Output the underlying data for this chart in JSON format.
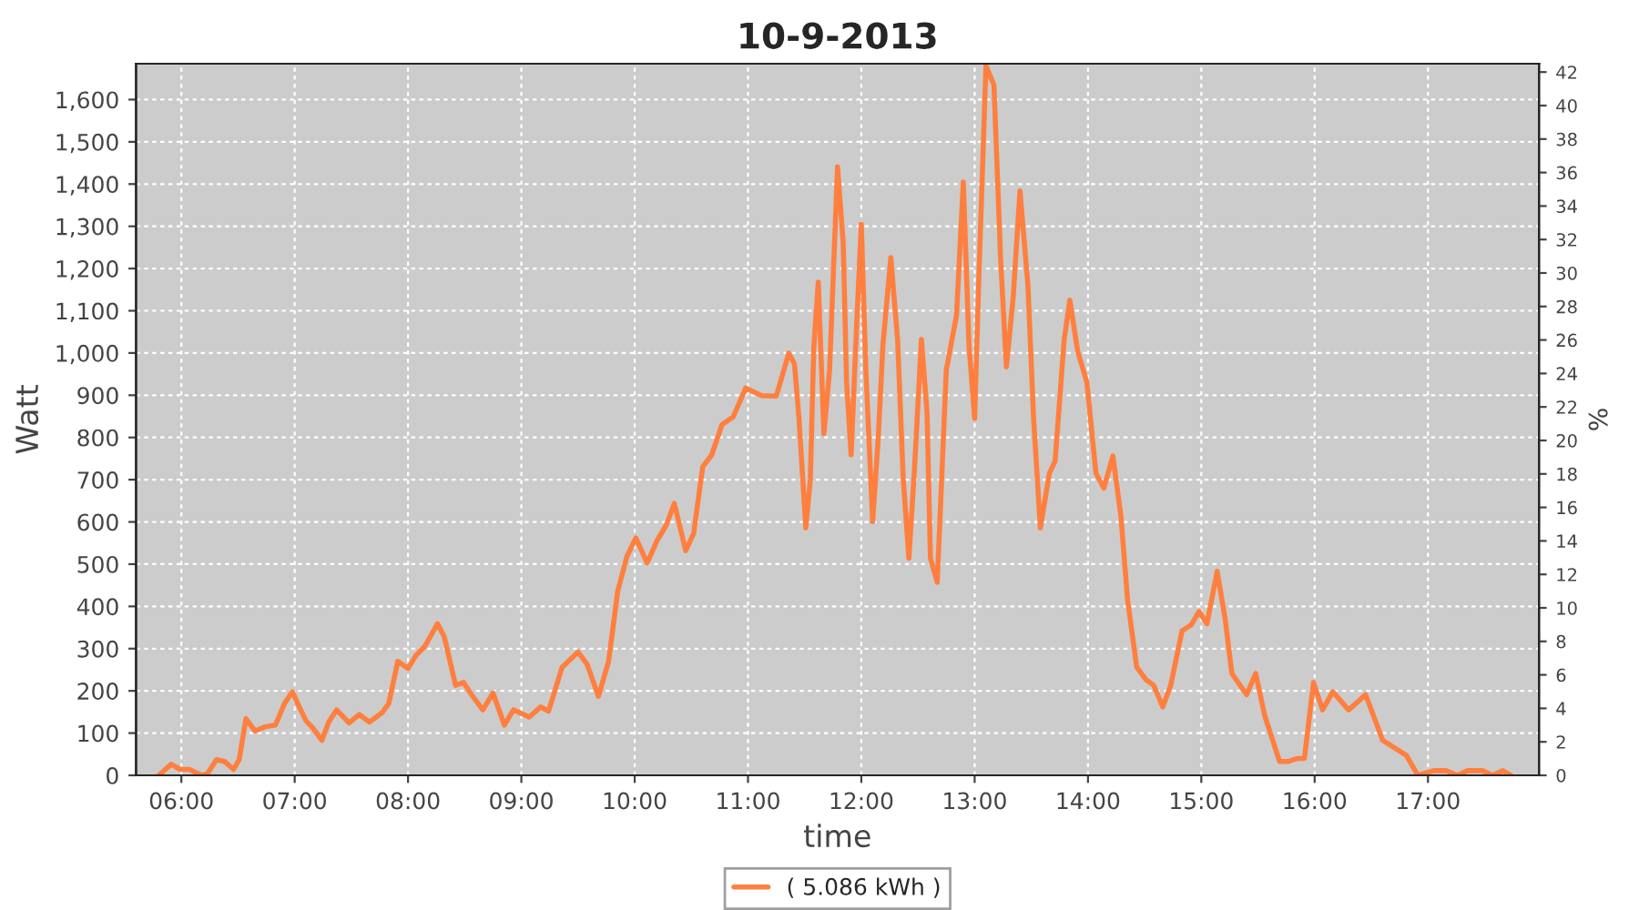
{
  "chart_data": {
    "type": "line",
    "title": "10-9-2013",
    "xlabel": "time",
    "ylabel": "Watt",
    "y2label": "%",
    "xlim": [
      5.6,
      17.98
    ],
    "xticks": [
      {
        "value": 6,
        "label": "06:00"
      },
      {
        "value": 7,
        "label": "07:00"
      },
      {
        "value": 8,
        "label": "08:00"
      },
      {
        "value": 9,
        "label": "09:00"
      },
      {
        "value": 10,
        "label": "10:00"
      },
      {
        "value": 11,
        "label": "11:00"
      },
      {
        "value": 12,
        "label": "12:00"
      },
      {
        "value": 13,
        "label": "13:00"
      },
      {
        "value": 14,
        "label": "14:00"
      },
      {
        "value": 15,
        "label": "15:00"
      },
      {
        "value": 16,
        "label": "16:00"
      },
      {
        "value": 17,
        "label": "17:00"
      }
    ],
    "ylim": [
      0,
      1685
    ],
    "yticks": [
      0,
      100,
      200,
      300,
      400,
      500,
      600,
      700,
      800,
      900,
      {
        "value": 1000,
        "label": "1,000"
      },
      {
        "value": 1100,
        "label": "1,100"
      },
      {
        "value": 1200,
        "label": "1,200"
      },
      {
        "value": 1300,
        "label": "1,300"
      },
      {
        "value": 1400,
        "label": "1,400"
      },
      {
        "value": 1500,
        "label": "1,500"
      },
      {
        "value": 1600,
        "label": "1,600"
      }
    ],
    "y2lim": [
      0,
      42.5
    ],
    "y2ticks": [
      0,
      2,
      4,
      6,
      8,
      10,
      12,
      14,
      16,
      18,
      20,
      22,
      24,
      26,
      28,
      30,
      32,
      34,
      36,
      38,
      40,
      42
    ],
    "grid": true,
    "legend": "bottom",
    "marker": "none",
    "line_style": "solid",
    "series": [
      {
        "name": "( 5.086 kWh )",
        "color": "#ff7f3f",
        "x": [
          5.8,
          5.91,
          5.99,
          6.07,
          6.18,
          6.23,
          6.31,
          6.38,
          6.46,
          6.51,
          6.57,
          6.65,
          6.74,
          6.83,
          6.91,
          6.98,
          7.04,
          7.1,
          7.16,
          7.24,
          7.3,
          7.37,
          7.48,
          7.57,
          7.66,
          7.77,
          7.83,
          7.91,
          8.0,
          8.07,
          8.15,
          8.26,
          8.32,
          8.42,
          8.49,
          8.56,
          8.66,
          8.75,
          8.85,
          8.93,
          9.07,
          9.17,
          9.24,
          9.36,
          9.5,
          9.58,
          9.68,
          9.77,
          9.85,
          9.93,
          10.01,
          10.11,
          10.2,
          10.28,
          10.35,
          10.45,
          10.52,
          10.6,
          10.68,
          10.77,
          10.87,
          10.98,
          11.12,
          11.25,
          11.36,
          11.41,
          11.45,
          11.51,
          11.55,
          11.58,
          11.62,
          11.67,
          11.72,
          11.79,
          11.84,
          11.87,
          11.91,
          11.96,
          12.0,
          12.04,
          12.1,
          12.15,
          12.19,
          12.26,
          12.32,
          12.37,
          12.42,
          12.47,
          12.53,
          12.58,
          12.61,
          12.67,
          12.75,
          12.84,
          12.9,
          12.95,
          13.0,
          13.04,
          13.1,
          13.17,
          13.23,
          13.28,
          13.34,
          13.4,
          13.47,
          13.52,
          13.58,
          13.66,
          13.71,
          13.79,
          13.84,
          13.91,
          13.99,
          14.07,
          14.14,
          14.22,
          14.29,
          14.35,
          14.43,
          14.51,
          14.58,
          14.66,
          14.73,
          14.83,
          14.91,
          14.98,
          15.05,
          15.14,
          15.21,
          15.27,
          15.4,
          15.48,
          15.56,
          15.69,
          15.77,
          15.85,
          15.91,
          15.99,
          16.07,
          16.16,
          16.3,
          16.45,
          16.6,
          16.81,
          16.91,
          17.05,
          17.16,
          17.26,
          17.35,
          17.48,
          17.57,
          17.66,
          17.73
        ],
        "values": [
          0,
          26,
          14,
          14,
          0,
          4,
          37,
          33,
          14,
          37,
          134,
          105,
          115,
          119,
          170,
          198,
          162,
          129,
          112,
          83,
          126,
          155,
          124,
          144,
          126,
          148,
          170,
          270,
          253,
          284,
          306,
          359,
          328,
          213,
          220,
          191,
          155,
          195,
          119,
          155,
          138,
          162,
          152,
          256,
          292,
          263,
          187,
          270,
          435,
          517,
          562,
          503,
          557,
          593,
          644,
          532,
          572,
          730,
          759,
          830,
          849,
          917,
          899,
          898,
          1000,
          974,
          845,
          586,
          701,
          1010,
          1168,
          809,
          960,
          1441,
          1261,
          931,
          759,
          1075,
          1305,
          960,
          601,
          802,
          1017,
          1226,
          1032,
          701,
          514,
          730,
          1032,
          859,
          514,
          457,
          960,
          1089,
          1405,
          1017,
          845,
          1204,
          1680,
          1635,
          1218,
          967,
          1132,
          1384,
          1161,
          845,
          586,
          716,
          744,
          1032,
          1125,
          1003,
          931,
          716,
          680,
          756,
          615,
          414,
          256,
          227,
          213,
          162,
          213,
          342,
          356,
          388,
          359,
          483,
          371,
          241,
          191,
          241,
          141,
          33,
          33,
          40,
          40,
          220,
          155,
          198,
          155,
          191,
          83,
          47,
          0,
          11,
          11,
          0,
          11,
          11,
          0,
          11,
          0
        ]
      }
    ]
  }
}
